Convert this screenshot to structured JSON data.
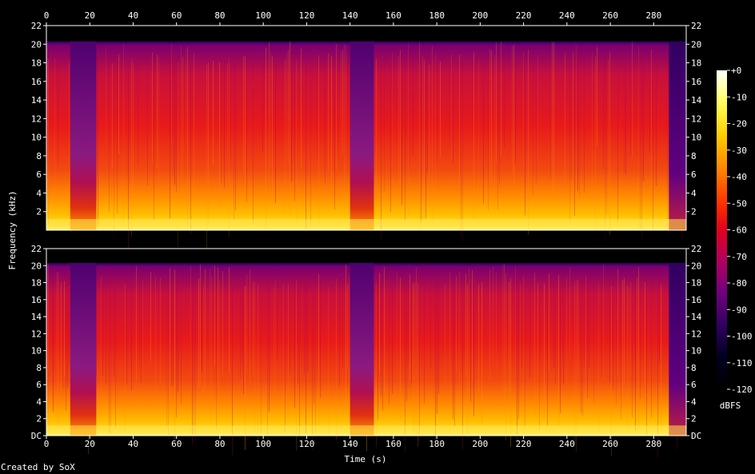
{
  "chart_data": {
    "type": "heatmap",
    "xlabel": "Time (s)",
    "ylabel": "Frequency (kHz)",
    "xlim": [
      0,
      295
    ],
    "ylim": [
      0,
      22
    ],
    "x_ticks": [
      0,
      20,
      40,
      60,
      80,
      100,
      120,
      140,
      160,
      180,
      200,
      220,
      240,
      260,
      280
    ],
    "y_ticks": [
      {
        "v": 0,
        "label": "DC"
      },
      {
        "v": 2,
        "label": "2"
      },
      {
        "v": 4,
        "label": "4"
      },
      {
        "v": 6,
        "label": "6"
      },
      {
        "v": 8,
        "label": "8"
      },
      {
        "v": 10,
        "label": "10"
      },
      {
        "v": 12,
        "label": "12"
      },
      {
        "v": 14,
        "label": "14"
      },
      {
        "v": 16,
        "label": "16"
      },
      {
        "v": 18,
        "label": "18"
      },
      {
        "v": 20,
        "label": "20"
      },
      {
        "v": 22,
        "label": "22"
      }
    ],
    "channels": 2,
    "colorbar": {
      "label": "dBFS",
      "ticks": [
        {
          "v": 0,
          "label": "+0"
        },
        {
          "v": -10,
          "label": "-10"
        },
        {
          "v": -20,
          "label": "-20"
        },
        {
          "v": -30,
          "label": "-30"
        },
        {
          "v": -40,
          "label": "-40"
        },
        {
          "v": -50,
          "label": "-50"
        },
        {
          "v": -60,
          "label": "-60"
        },
        {
          "v": -70,
          "label": "-70"
        },
        {
          "v": -80,
          "label": "-80"
        },
        {
          "v": -90,
          "label": "-90"
        },
        {
          "v": -100,
          "label": "-100"
        },
        {
          "v": -110,
          "label": "-110"
        },
        {
          "v": -120,
          "label": "-120"
        }
      ],
      "range": [
        -120,
        0
      ],
      "colors": [
        "#ffffff",
        "#ffff60",
        "#ffd000",
        "#ff8c00",
        "#ff3000",
        "#e00020",
        "#b00060",
        "#700080",
        "#300060",
        "#000020",
        "#000000"
      ]
    },
    "quiet_segments_s": [
      [
        11,
        23
      ],
      [
        140,
        151
      ],
      [
        287,
        295
      ]
    ],
    "bandwidth_cutoff_khz": 20.3
  },
  "credit": "Created by SoX"
}
